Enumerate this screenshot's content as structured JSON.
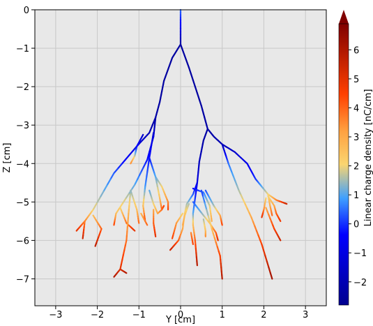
{
  "chart_data": {
    "type": "line",
    "title": "",
    "xlabel": "Y [cm]",
    "ylabel": "Z [cm]",
    "xlim": [
      -3.5,
      3.5
    ],
    "ylim": [
      -7.7,
      0
    ],
    "grid": true,
    "x_ticks": [
      -3,
      -2,
      -1,
      0,
      1,
      2,
      3
    ],
    "x_tick_labels": [
      "−3",
      "−2",
      "−1",
      "0",
      "1",
      "2",
      "3"
    ],
    "y_ticks": [
      0,
      -1,
      -2,
      -3,
      -4,
      -5,
      -6,
      -7
    ],
    "y_tick_labels": [
      "0",
      "−1",
      "−2",
      "−3",
      "−4",
      "−5",
      "−6",
      "−7"
    ],
    "colorbar": {
      "label": "Linear charge density [nC/cm]",
      "min": -2.8,
      "max": 6.9,
      "ticks": [
        -2,
        -1,
        0,
        1,
        2,
        3,
        4,
        5,
        6
      ],
      "tick_labels": [
        "−2",
        "−1",
        "0",
        "1",
        "2",
        "3",
        "4",
        "5",
        "6"
      ],
      "extend": "max",
      "colormap": "jet-like"
    },
    "branches": [
      {
        "points": [
          [
            0.0,
            0.0
          ],
          [
            0.0,
            -0.4
          ],
          [
            0.0,
            -0.9
          ]
        ],
        "values": [
          0.5,
          -0.5,
          -2.4
        ]
      },
      {
        "points": [
          [
            0.0,
            -0.9
          ],
          [
            -0.2,
            -1.25
          ],
          [
            -0.4,
            -1.85
          ],
          [
            -0.5,
            -2.4
          ],
          [
            -0.6,
            -2.8
          ]
        ],
        "values": [
          -2.4,
          -2.4,
          -2.4,
          -2.4,
          -2.3
        ]
      },
      {
        "points": [
          [
            0.0,
            -0.9
          ],
          [
            0.2,
            -1.5
          ],
          [
            0.5,
            -2.5
          ],
          [
            0.65,
            -3.1
          ]
        ],
        "values": [
          -2.4,
          -2.4,
          -2.4,
          -2.3
        ]
      },
      {
        "points": [
          [
            -0.6,
            -2.8
          ],
          [
            -0.75,
            -3.2
          ],
          [
            -1.05,
            -3.55
          ],
          [
            -1.6,
            -4.25
          ],
          [
            -2.1,
            -5.2
          ],
          [
            -2.3,
            -5.5
          ],
          [
            -2.5,
            -5.75
          ]
        ],
        "values": [
          -2.3,
          -2.0,
          -1.2,
          0.3,
          2.0,
          3.5,
          5.0
        ]
      },
      {
        "points": [
          [
            -2.3,
            -5.5
          ],
          [
            -2.35,
            -5.95
          ]
        ],
        "values": [
          3.5,
          5.5
        ]
      },
      {
        "points": [
          [
            -2.1,
            -5.35
          ],
          [
            -1.9,
            -5.7
          ],
          [
            -2.05,
            -6.15
          ]
        ],
        "values": [
          2.5,
          4.0,
          5.8
        ]
      },
      {
        "points": [
          [
            -0.6,
            -2.8
          ],
          [
            -0.65,
            -3.3
          ],
          [
            -0.8,
            -3.9
          ],
          [
            -1.1,
            -4.55
          ],
          [
            -1.55,
            -5.3
          ],
          [
            -1.6,
            -5.6
          ]
        ],
        "values": [
          -2.3,
          -1.5,
          -0.3,
          1.0,
          2.5,
          4.5
        ]
      },
      {
        "points": [
          [
            -1.45,
            -5.15
          ],
          [
            -1.3,
            -5.55
          ],
          [
            -1.1,
            -5.75
          ]
        ],
        "values": [
          2.0,
          3.8,
          5.0
        ]
      },
      {
        "points": [
          [
            -1.2,
            -4.7
          ],
          [
            -1.05,
            -5.2
          ],
          [
            -1.0,
            -5.55
          ]
        ],
        "values": [
          1.3,
          2.5,
          4.0
        ]
      },
      {
        "points": [
          [
            -1.2,
            -4.7
          ],
          [
            -1.25,
            -5.3
          ],
          [
            -1.3,
            -6.0
          ],
          [
            -1.45,
            -6.75
          ],
          [
            -1.6,
            -6.95
          ]
        ],
        "values": [
          1.3,
          2.8,
          3.8,
          5.0,
          6.0
        ]
      },
      {
        "points": [
          [
            -1.45,
            -6.75
          ],
          [
            -1.3,
            -6.85
          ]
        ],
        "values": [
          5.0,
          6.0
        ]
      },
      {
        "points": [
          [
            -0.9,
            -3.25
          ],
          [
            -1.05,
            -3.55
          ],
          [
            -1.1,
            -3.8
          ],
          [
            -1.2,
            -4.0
          ]
        ],
        "values": [
          -1.5,
          -0.5,
          1.5,
          3.5
        ]
      },
      {
        "points": [
          [
            -0.65,
            -3.2
          ],
          [
            -0.75,
            -3.85
          ],
          [
            -0.85,
            -4.6
          ],
          [
            -0.9,
            -5.1
          ],
          [
            -0.85,
            -5.5
          ]
        ],
        "values": [
          -1.3,
          -0.3,
          0.8,
          2.5,
          4.5
        ]
      },
      {
        "points": [
          [
            -0.75,
            -3.85
          ],
          [
            -0.6,
            -4.35
          ],
          [
            -0.5,
            -4.9
          ],
          [
            -0.45,
            -5.2
          ]
        ],
        "values": [
          -0.3,
          1.0,
          2.5,
          4.0
        ]
      },
      {
        "points": [
          [
            -0.6,
            -4.35
          ],
          [
            -0.45,
            -4.6
          ],
          [
            -0.3,
            -5.0
          ],
          [
            -0.3,
            -5.2
          ]
        ],
        "values": [
          1.0,
          2.0,
          3.5,
          4.5
        ]
      },
      {
        "points": [
          [
            -0.75,
            -4.7
          ],
          [
            -0.65,
            -5.05
          ],
          [
            -0.55,
            -5.3
          ],
          [
            -0.45,
            -5.2
          ],
          [
            -0.4,
            -5.1
          ]
        ],
        "values": [
          1.0,
          2.0,
          3.0,
          3.8,
          4.5
        ]
      },
      {
        "points": [
          [
            -0.95,
            -5.3
          ],
          [
            -0.8,
            -5.6
          ]
        ],
        "values": [
          2.8,
          4.0
        ]
      },
      {
        "points": [
          [
            -0.65,
            -5.2
          ],
          [
            -0.65,
            -5.55
          ],
          [
            -0.6,
            -5.9
          ]
        ],
        "values": [
          3.0,
          4.0,
          5.0
        ]
      },
      {
        "points": [
          [
            0.65,
            -3.1
          ],
          [
            0.55,
            -3.4
          ],
          [
            0.45,
            -3.95
          ],
          [
            0.4,
            -4.5
          ],
          [
            0.3,
            -4.8
          ],
          [
            0.15,
            -5.05
          ],
          [
            0.1,
            -5.3
          ],
          [
            0.05,
            -5.7
          ],
          [
            -0.05,
            -6.0
          ],
          [
            -0.25,
            -6.25
          ]
        ],
        "values": [
          -2.3,
          -2.3,
          -1.8,
          -1.0,
          0.3,
          1.5,
          2.2,
          3.0,
          4.0,
          5.5
        ]
      },
      {
        "points": [
          [
            0.4,
            -4.5
          ],
          [
            0.35,
            -4.9
          ],
          [
            0.3,
            -5.3
          ],
          [
            0.3,
            -5.6
          ],
          [
            0.35,
            -6.0
          ],
          [
            0.4,
            -6.65
          ]
        ],
        "values": [
          -1.0,
          0.0,
          1.0,
          2.5,
          4.0,
          6.0
        ]
      },
      {
        "points": [
          [
            0.3,
            -5.0
          ],
          [
            0.55,
            -5.35
          ],
          [
            0.7,
            -5.55
          ],
          [
            0.85,
            -5.8
          ],
          [
            0.9,
            -6.0
          ]
        ],
        "values": [
          0.3,
          1.5,
          2.5,
          4.0,
          5.0
        ]
      },
      {
        "points": [
          [
            0.3,
            -4.65
          ],
          [
            0.55,
            -4.75
          ],
          [
            0.7,
            -5.1
          ],
          [
            0.75,
            -5.5
          ]
        ],
        "values": [
          -0.5,
          0.5,
          1.8,
          3.0
        ]
      },
      {
        "points": [
          [
            0.6,
            -4.7
          ],
          [
            0.8,
            -5.1
          ],
          [
            0.95,
            -5.35
          ],
          [
            1.0,
            -5.6
          ]
        ],
        "values": [
          0.2,
          1.5,
          3.0,
          4.5
        ]
      },
      {
        "points": [
          [
            0.5,
            -4.7
          ],
          [
            0.75,
            -5.7
          ],
          [
            0.95,
            -6.4
          ],
          [
            1.0,
            -7.0
          ]
        ],
        "values": [
          0.0,
          2.5,
          4.5,
          6.0
        ]
      },
      {
        "points": [
          [
            0.55,
            -5.45
          ],
          [
            0.6,
            -5.75
          ],
          [
            0.6,
            -5.9
          ]
        ],
        "values": [
          1.5,
          2.5,
          3.5
        ]
      },
      {
        "points": [
          [
            0.05,
            -5.3
          ],
          [
            -0.1,
            -5.55
          ],
          [
            -0.2,
            -5.95
          ]
        ],
        "values": [
          2.0,
          3.2,
          4.5
        ]
      },
      {
        "points": [
          [
            0.2,
            -5.05
          ],
          [
            0.1,
            -5.35
          ],
          [
            0.05,
            -5.6
          ]
        ],
        "values": [
          1.5,
          2.5,
          3.0
        ]
      },
      {
        "points": [
          [
            0.25,
            -5.8
          ],
          [
            0.3,
            -6.1
          ]
        ],
        "values": [
          3.5,
          4.5
        ]
      },
      {
        "points": [
          [
            0.65,
            -3.1
          ],
          [
            0.8,
            -3.3
          ],
          [
            1.0,
            -3.5
          ],
          [
            1.3,
            -3.7
          ],
          [
            1.6,
            -4.0
          ],
          [
            1.8,
            -4.4
          ],
          [
            1.95,
            -4.6
          ],
          [
            2.1,
            -4.8
          ],
          [
            2.3,
            -4.95
          ],
          [
            2.55,
            -5.05
          ]
        ],
        "values": [
          -2.3,
          -2.2,
          -2.0,
          -1.5,
          -0.8,
          0.0,
          1.0,
          2.0,
          3.5,
          5.5
        ]
      },
      {
        "points": [
          [
            2.1,
            -4.8
          ],
          [
            2.15,
            -5.1
          ],
          [
            2.2,
            -5.35
          ]
        ],
        "values": [
          2.0,
          3.0,
          4.0
        ]
      },
      {
        "points": [
          [
            2.05,
            -4.9
          ],
          [
            2.0,
            -5.2
          ],
          [
            1.95,
            -5.4
          ]
        ],
        "values": [
          2.0,
          3.5,
          5.0
        ]
      },
      {
        "points": [
          [
            2.1,
            -4.85
          ],
          [
            2.25,
            -5.1
          ],
          [
            2.3,
            -5.3
          ],
          [
            2.4,
            -5.5
          ]
        ],
        "values": [
          2.0,
          3.0,
          4.0,
          4.8
        ]
      },
      {
        "points": [
          [
            2.05,
            -5.15
          ],
          [
            2.25,
            -5.7
          ],
          [
            2.4,
            -6.0
          ]
        ],
        "values": [
          3.0,
          4.5,
          5.5
        ]
      },
      {
        "points": [
          [
            1.0,
            -3.5
          ],
          [
            1.15,
            -4.0
          ],
          [
            1.4,
            -4.7
          ],
          [
            1.7,
            -5.4
          ],
          [
            1.95,
            -6.1
          ],
          [
            2.2,
            -7.0
          ]
        ],
        "values": [
          -2.0,
          0.5,
          1.5,
          3.0,
          4.5,
          6.3
        ]
      }
    ]
  }
}
